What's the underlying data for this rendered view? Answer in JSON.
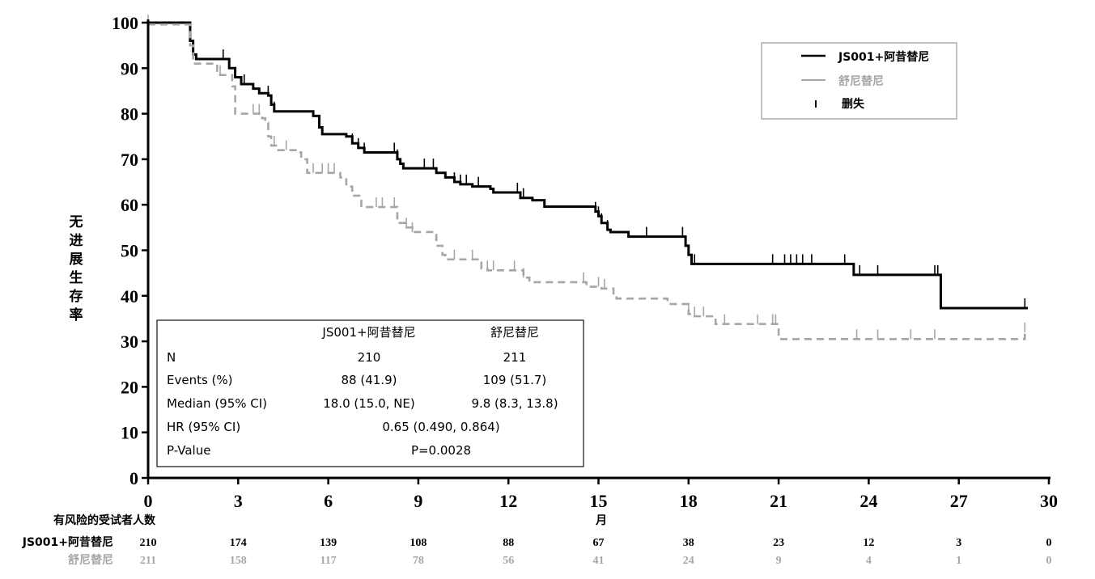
{
  "chart_data": {
    "type": "line",
    "subtype": "kaplan-meier",
    "title": "",
    "xlabel": "月",
    "ylabel": "无进展生存率",
    "xlim": [
      0,
      30
    ],
    "ylim": [
      0,
      100
    ],
    "xticks": [
      0,
      3,
      6,
      9,
      12,
      15,
      18,
      21,
      24,
      27,
      30
    ],
    "yticks": [
      0,
      10,
      20,
      30,
      40,
      50,
      60,
      70,
      80,
      90,
      100
    ],
    "grid": false,
    "legend": {
      "placement": "top-right",
      "entries": [
        {
          "label": "JS001+阿昔替尼",
          "style": "solid",
          "color": "#000000"
        },
        {
          "label": "舒尼替尼",
          "style": "dashed",
          "color": "#a6a6a6"
        },
        {
          "label": "删失",
          "style": "censor-mark",
          "color": "#000000"
        }
      ]
    },
    "series": [
      {
        "name": "JS001+阿昔替尼",
        "color": "#000000",
        "style": "solid",
        "steps": [
          [
            0,
            100
          ],
          [
            1.3,
            100
          ],
          [
            1.4,
            96
          ],
          [
            1.5,
            93
          ],
          [
            1.6,
            92
          ],
          [
            2.6,
            92
          ],
          [
            2.7,
            90
          ],
          [
            2.9,
            88
          ],
          [
            3.1,
            86.5
          ],
          [
            3.5,
            85.5
          ],
          [
            3.7,
            84.5
          ],
          [
            4.0,
            84
          ],
          [
            4.1,
            82
          ],
          [
            4.2,
            80.5
          ],
          [
            5.4,
            80.5
          ],
          [
            5.5,
            79.5
          ],
          [
            5.7,
            77
          ],
          [
            5.8,
            75.5
          ],
          [
            6.5,
            75.5
          ],
          [
            6.6,
            75
          ],
          [
            6.8,
            73.5
          ],
          [
            7.0,
            72.5
          ],
          [
            7.2,
            71.5
          ],
          [
            8.2,
            71.5
          ],
          [
            8.3,
            70
          ],
          [
            8.4,
            69
          ],
          [
            8.5,
            68
          ],
          [
            9.5,
            68
          ],
          [
            9.6,
            67
          ],
          [
            9.9,
            66
          ],
          [
            10.2,
            65
          ],
          [
            10.4,
            64.5
          ],
          [
            10.8,
            64
          ],
          [
            11.4,
            63.5
          ],
          [
            11.5,
            62.7
          ],
          [
            12.2,
            62.7
          ],
          [
            12.4,
            61.5
          ],
          [
            12.8,
            61
          ],
          [
            13.2,
            59.6
          ],
          [
            14.8,
            59.6
          ],
          [
            14.9,
            58.5
          ],
          [
            15.0,
            57.5
          ],
          [
            15.1,
            56
          ],
          [
            15.3,
            54.5
          ],
          [
            15.4,
            54
          ],
          [
            15.9,
            54
          ],
          [
            16.0,
            53
          ],
          [
            17.8,
            53
          ],
          [
            17.9,
            51
          ],
          [
            18.0,
            49
          ],
          [
            18.1,
            47
          ],
          [
            23.4,
            47
          ],
          [
            23.5,
            44.6
          ],
          [
            26.3,
            44.6
          ],
          [
            26.4,
            37.3
          ],
          [
            29.3,
            37.3
          ]
        ],
        "censor_times": [
          2.5,
          2.9,
          3.2,
          4.0,
          4.2,
          6.8,
          7.0,
          7.2,
          8.2,
          8.3,
          9.2,
          9.5,
          10.2,
          10.4,
          10.6,
          11.0,
          12.3,
          12.5,
          14.9,
          15.0,
          15.1,
          15.3,
          16.6,
          17.8,
          18.2,
          20.8,
          21.2,
          21.4,
          21.6,
          21.8,
          22.1,
          23.2,
          23.7,
          24.3,
          26.2,
          26.3,
          29.2
        ]
      },
      {
        "name": "舒尼替尼",
        "color": "#a6a6a6",
        "style": "dashed",
        "steps": [
          [
            0,
            99.6
          ],
          [
            1.3,
            99.6
          ],
          [
            1.4,
            95
          ],
          [
            1.5,
            91
          ],
          [
            2.3,
            89
          ],
          [
            2.4,
            88.5
          ],
          [
            2.8,
            86
          ],
          [
            2.9,
            80
          ],
          [
            3.8,
            79
          ],
          [
            3.9,
            78
          ],
          [
            4.0,
            75
          ],
          [
            4.1,
            73
          ],
          [
            4.3,
            72
          ],
          [
            5.0,
            71.5
          ],
          [
            5.1,
            70
          ],
          [
            5.3,
            67
          ],
          [
            6.4,
            66
          ],
          [
            6.6,
            64
          ],
          [
            6.8,
            62
          ],
          [
            7.1,
            59.5
          ],
          [
            8.2,
            59.5
          ],
          [
            8.3,
            56
          ],
          [
            8.6,
            55
          ],
          [
            8.8,
            54
          ],
          [
            9.5,
            54
          ],
          [
            9.6,
            51
          ],
          [
            9.8,
            49
          ],
          [
            9.9,
            48
          ],
          [
            10.9,
            48
          ],
          [
            11.1,
            46
          ],
          [
            11.3,
            45.6
          ],
          [
            12.2,
            45.6
          ],
          [
            12.5,
            44
          ],
          [
            12.7,
            43
          ],
          [
            14.4,
            43
          ],
          [
            14.6,
            42
          ],
          [
            15.1,
            41.6
          ],
          [
            15.5,
            40
          ],
          [
            15.6,
            39.4
          ],
          [
            17.0,
            39.4
          ],
          [
            17.3,
            38.2
          ],
          [
            17.9,
            38.2
          ],
          [
            18.0,
            36
          ],
          [
            18.2,
            35.5
          ],
          [
            18.8,
            35.5
          ],
          [
            18.9,
            33.8
          ],
          [
            20.9,
            33.8
          ],
          [
            21.0,
            30.5
          ],
          [
            29.2,
            30.5
          ],
          [
            29.2,
            32
          ]
        ],
        "censor_times": [
          0,
          2.4,
          3.5,
          3.7,
          4.2,
          4.6,
          5.5,
          5.8,
          6.0,
          6.2,
          7.6,
          7.8,
          8.2,
          8.6,
          8.8,
          10.2,
          10.8,
          11.3,
          11.5,
          12.2,
          12.5,
          14.5,
          15.0,
          15.2,
          18.0,
          18.2,
          18.5,
          19.2,
          20.3,
          20.8,
          20.9,
          23.6,
          24.3,
          25.4,
          26.2,
          29.2
        ]
      }
    ],
    "stats_table": {
      "headers": [
        "",
        "JS001+阿昔替尼",
        "舒尼替尼"
      ],
      "rows": [
        {
          "label": "N",
          "values": [
            "210",
            "211"
          ]
        },
        {
          "label": "Events (%)",
          "values": [
            "88 (41.9)",
            "109 (51.7)"
          ]
        },
        {
          "label": "Median (95% CI)",
          "values": [
            "18.0 (15.0, NE)",
            "9.8 (8.3, 13.8)"
          ]
        },
        {
          "label": "HR (95% CI)",
          "span_value": "0.65 (0.490, 0.864)"
        },
        {
          "label": "P-Value",
          "span_value": "P=0.0028"
        }
      ]
    },
    "risk_table": {
      "title": "有风险的受试者人数",
      "times": [
        0,
        3,
        6,
        9,
        12,
        15,
        18,
        21,
        24,
        27,
        30
      ],
      "rows": [
        {
          "name": "JS001+阿昔替尼",
          "color": "#000000",
          "values": [
            210,
            174,
            139,
            108,
            88,
            67,
            38,
            23,
            12,
            3,
            0
          ]
        },
        {
          "name": "舒尼替尼",
          "color": "#a6a6a6",
          "values": [
            211,
            158,
            117,
            78,
            56,
            41,
            24,
            9,
            4,
            1,
            0
          ]
        }
      ]
    }
  }
}
